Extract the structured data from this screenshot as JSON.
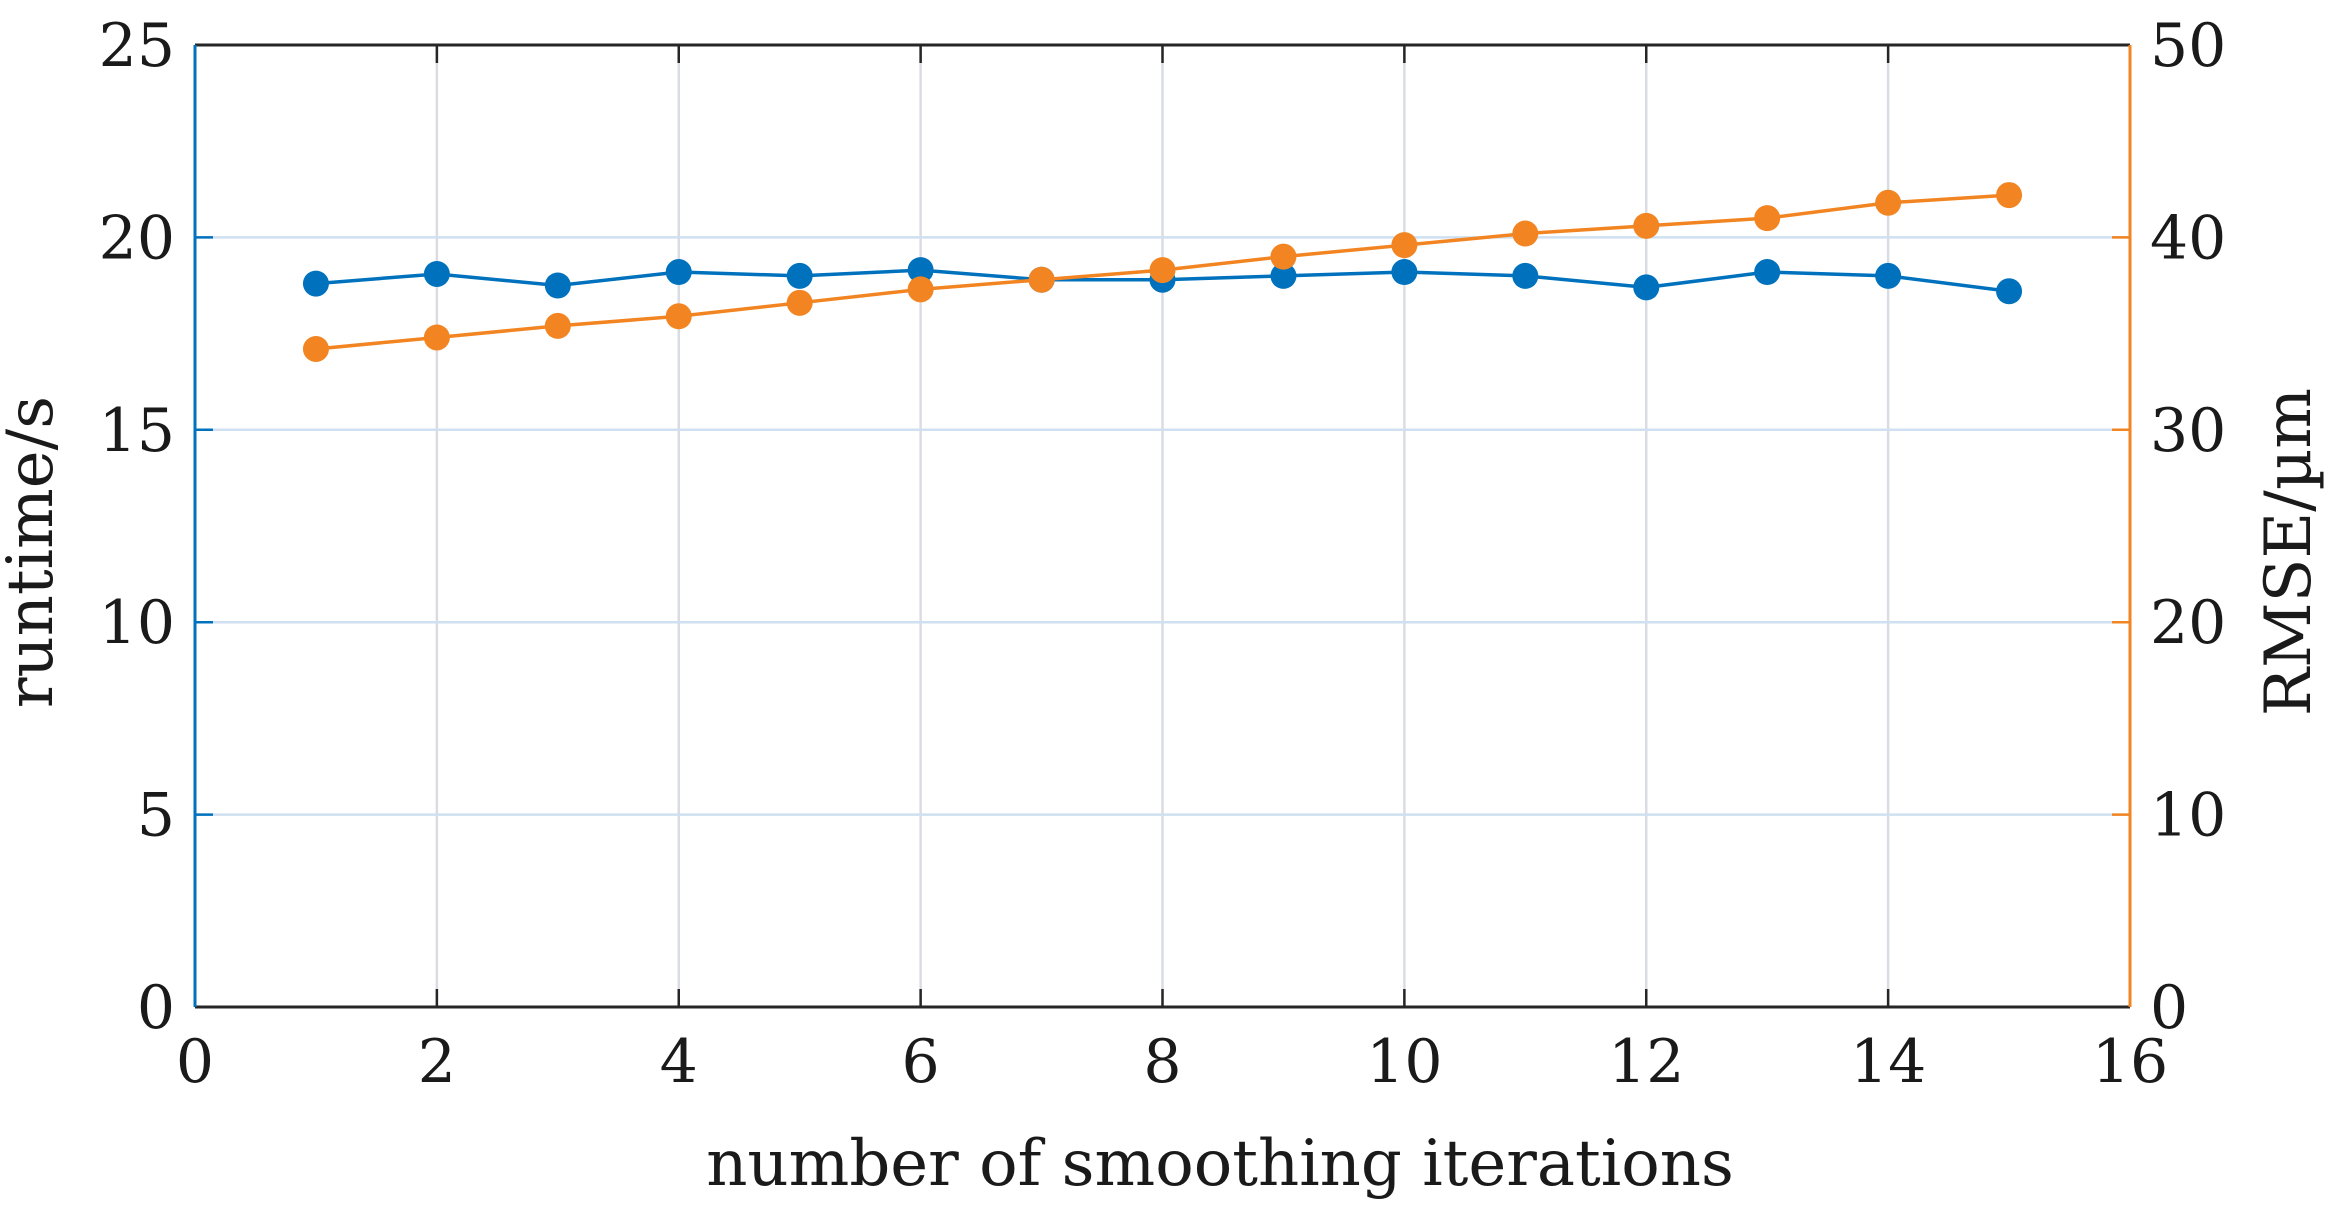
{
  "chart_data": {
    "type": "line",
    "title": "",
    "xlabel": "number of smoothing iterations",
    "ylabel_left": "runtime/s",
    "ylabel_right": "RMSE/µm",
    "xlim": [
      0,
      16
    ],
    "ylim_left": [
      0,
      25
    ],
    "ylim_right": [
      0,
      50
    ],
    "grid": true,
    "x_ticks": [
      "0",
      "2",
      "4",
      "6",
      "8",
      "10",
      "12",
      "14",
      "16"
    ],
    "y_left_ticks": [
      "0",
      "5",
      "10",
      "15",
      "20",
      "25"
    ],
    "y_right_ticks": [
      "0",
      "10",
      "20",
      "30",
      "40",
      "50"
    ],
    "x": [
      1,
      2,
      3,
      4,
      5,
      6,
      7,
      8,
      9,
      10,
      11,
      12,
      13,
      14,
      15
    ],
    "series": [
      {
        "name": "runtime",
        "axis": "left",
        "color": "#0072BD",
        "values": [
          18.8,
          19.05,
          18.75,
          19.1,
          19.0,
          19.15,
          18.9,
          18.9,
          19.0,
          19.1,
          19.0,
          18.7,
          19.1,
          19.0,
          18.6
        ]
      },
      {
        "name": "RMSE",
        "axis": "right",
        "color": "#F28522",
        "values": [
          34.2,
          34.8,
          35.4,
          35.9,
          36.6,
          37.3,
          37.8,
          38.3,
          39.0,
          39.6,
          40.2,
          40.6,
          41.0,
          41.8,
          42.2
        ]
      }
    ]
  }
}
